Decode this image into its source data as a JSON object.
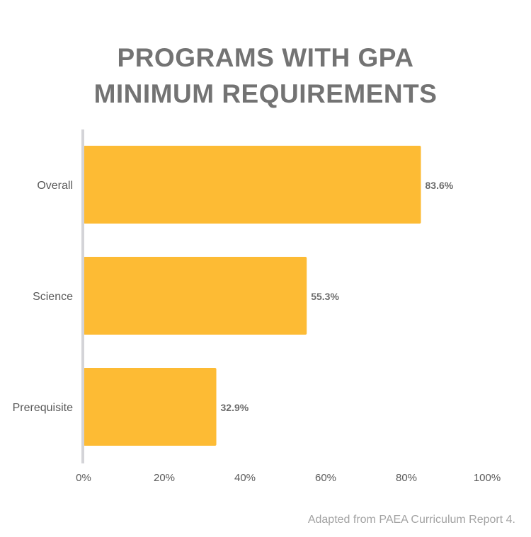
{
  "title_line1": "PROGRAMS WITH GPA",
  "title_line2": "MINIMUM REQUIREMENTS",
  "source": "Adapted from PAEA Curriculum Report 4.",
  "colors": {
    "bar": "#FDBB34",
    "axis": "#d4d4d8",
    "label": "#595959",
    "value_label": "#6b6b6b",
    "tick": "#5a5a5a"
  },
  "chart_data": {
    "type": "bar",
    "orientation": "horizontal",
    "title": "PROGRAMS WITH GPA MINIMUM REQUIREMENTS",
    "categories": [
      "Overall",
      "Science",
      "Prerequisite"
    ],
    "values": [
      83.6,
      55.3,
      32.9
    ],
    "value_labels": [
      "83.6%",
      "55.3%",
      "32.9%"
    ],
    "xlim": [
      0,
      100
    ],
    "x_ticks": [
      0,
      20,
      40,
      60,
      80,
      100
    ],
    "x_tick_labels": [
      "0%",
      "20%",
      "40%",
      "60%",
      "80%",
      "100%"
    ],
    "xlabel": "",
    "ylabel": "",
    "grid": false,
    "legend": "none"
  }
}
